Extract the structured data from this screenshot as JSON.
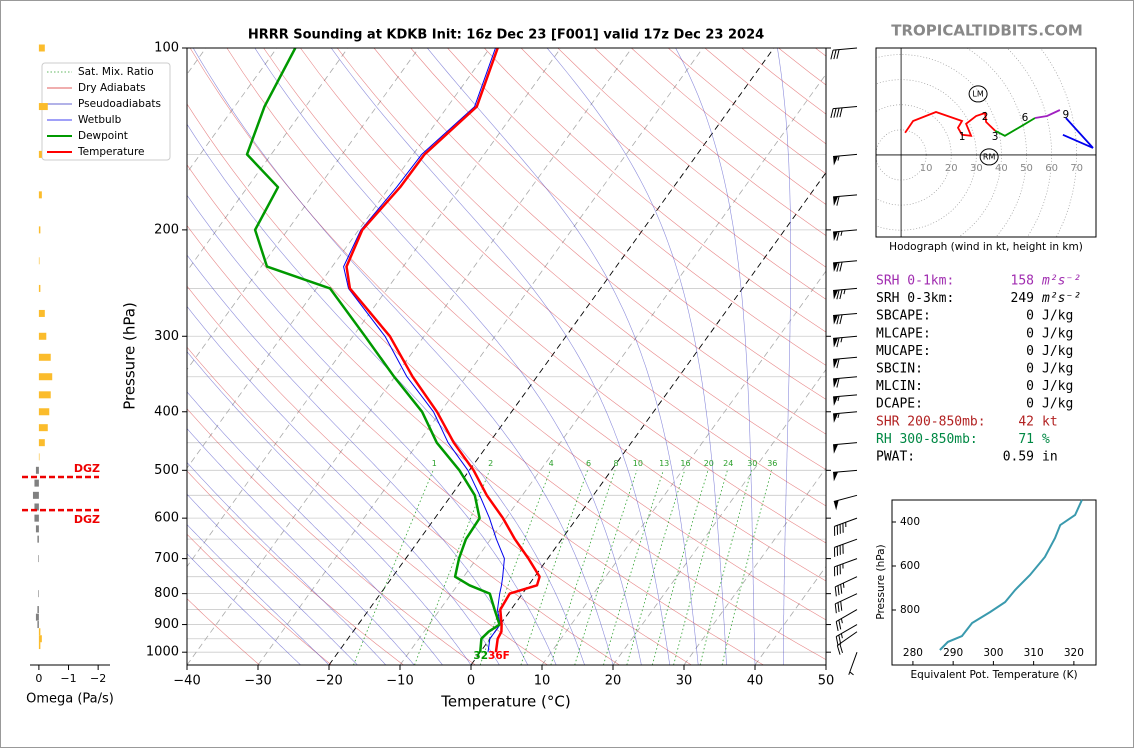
{
  "header": {
    "brand": "TROPICALTIDBITS.COM"
  },
  "parameters": {
    "rows": [
      {
        "label": "SRH 0-1km:",
        "value": 158,
        "unit": "m²s⁻²",
        "color": "#a02cb0"
      },
      {
        "label": "SRH 0-3km:",
        "value": 249,
        "unit": "m²s⁻²",
        "color": "#000000"
      },
      {
        "label": "SBCAPE:",
        "value": 0,
        "unit": "J/kg",
        "color": "#000000"
      },
      {
        "label": "MLCAPE:",
        "value": 0,
        "unit": "J/kg",
        "color": "#000000"
      },
      {
        "label": "MUCAPE:",
        "value": 0,
        "unit": "J/kg",
        "color": "#000000"
      },
      {
        "label": "SBCIN:",
        "value": 0,
        "unit": "J/kg",
        "color": "#000000"
      },
      {
        "label": "MLCIN:",
        "value": 0,
        "unit": "J/kg",
        "color": "#000000"
      },
      {
        "label": "DCAPE:",
        "value": 0,
        "unit": "J/kg",
        "color": "#000000"
      },
      {
        "label": "SHR 200-850mb:",
        "value": 42,
        "unit": "kt",
        "color": "#b22222"
      },
      {
        "label": "RH 300-850mb:",
        "value": 71,
        "unit": "%",
        "color": "#008844"
      },
      {
        "label": "PWAT:",
        "value": 0.59,
        "unit": "in",
        "color": "#000000"
      }
    ]
  },
  "chart_data": [
    {
      "type": "skewt",
      "title": "HRRR Sounding at KDKB Init: 16z Dec 23 [F001] valid 17z Dec 23 2024",
      "xlabel": "Temperature (°C)",
      "ylabel": "Pressure (hPa)",
      "xlim": [
        -40,
        50
      ],
      "ylim": [
        1050,
        100
      ],
      "log_scale": true,
      "xticks": [
        {
          "value": -40,
          "label": "−40"
        },
        {
          "value": -30,
          "label": "−30"
        },
        {
          "value": -20,
          "label": "−20"
        },
        {
          "value": -10,
          "label": "−10"
        },
        0,
        10,
        20,
        30,
        40,
        50
      ],
      "yticks": [
        100,
        200,
        300,
        400,
        500,
        600,
        700,
        800,
        900,
        1000
      ],
      "y": [
        1000,
        950,
        925,
        900,
        850,
        800,
        775,
        750,
        700,
        650,
        600,
        550,
        500,
        450,
        400,
        350,
        300,
        250,
        230,
        200,
        170,
        150,
        125,
        100
      ],
      "series": [
        {
          "name": "Wetbulb",
          "color": "#0000ee",
          "width": 1,
          "values": [
            1.1,
            0,
            0,
            0,
            -1.9,
            -3.2,
            -3.8,
            -4.5,
            -6.1,
            -9.2,
            -12.3,
            -16,
            -20.2,
            -25.8,
            -31,
            -38.3,
            -45.5,
            -55.5,
            -58.4,
            -59.7,
            -59,
            -58.8,
            -56.2,
            -59.2
          ]
        },
        {
          "name": "Dewpoint",
          "color": "#009900",
          "width": 2.5,
          "values": [
            0,
            -1.2,
            -0.9,
            -0.1,
            -2.3,
            -4.6,
            -8.3,
            -11.2,
            -12.5,
            -13.5,
            -13.7,
            -16.7,
            -21.4,
            -27.4,
            -32.6,
            -40.1,
            -48.3,
            -58.1,
            -69.2,
            -74.6,
            -75.7,
            -83.4,
            -85.8,
            -87.4
          ]
        },
        {
          "name": "Temperature",
          "color": "#ff0000",
          "width": 2.5,
          "values": [
            2.2,
            1.1,
            0.9,
            0.2,
            -1.5,
            -1.8,
            1.2,
            0.7,
            -2.7,
            -6.6,
            -10.4,
            -15,
            -19.4,
            -25,
            -30.5,
            -37.5,
            -44.8,
            -55.3,
            -58,
            -59.5,
            -58.5,
            -58.4,
            -55.9,
            -58.9
          ]
        }
      ],
      "background_lines": [
        {
          "name": "Sat. Mix. Ratio",
          "color": "#2ca02c"
        },
        {
          "name": "Dry Adiabats",
          "color": "#d62728"
        },
        {
          "name": "Pseudoadiabats",
          "color": "#3030c0"
        }
      ],
      "mixing_ratio_labels": [
        1,
        2,
        4,
        6,
        8,
        10,
        13,
        16,
        20,
        24,
        30,
        36
      ],
      "surface_labels": {
        "dewpoint": "32",
        "temperature": "36F"
      },
      "wind": {
        "pressure": [
          100,
          125,
          150,
          175,
          200,
          225,
          250,
          275,
          300,
          325,
          350,
          375,
          400,
          450,
          500,
          550,
          600,
          650,
          700,
          750,
          800,
          850,
          900,
          925,
          1000
        ],
        "direction": [
          265,
          265,
          265,
          265,
          265,
          265,
          265,
          265,
          265,
          265,
          265,
          265,
          265,
          265,
          265,
          255,
          250,
          250,
          250,
          245,
          245,
          240,
          240,
          235,
          200
        ],
        "speed": [
          30,
          40,
          55,
          60,
          65,
          70,
          75,
          70,
          65,
          60,
          60,
          55,
          55,
          50,
          50,
          50,
          45,
          40,
          35,
          35,
          30,
          25,
          25,
          20,
          5
        ]
      }
    },
    {
      "type": "hodograph",
      "xlabel": "Hodograph (wind in kt, height in km)",
      "xlim": [
        -10,
        77.7
      ],
      "ylim": [
        -32.7,
        42.6
      ],
      "xticks": [
        10,
        20,
        30,
        40,
        50,
        60,
        70
      ],
      "series": [
        {
          "color": "#ff0000",
          "x": [
            1.6,
            4.8,
            13.9,
            24.3,
            22.7,
            24.3,
            27.9,
            25.9,
            29.9,
            33.5,
            33.9,
            37.5
          ],
          "values": [
            8.8,
            13.5,
            17.1,
            13.5,
            10.8,
            8.0,
            7.6,
            12.4,
            15.5,
            16.7,
            13.1,
            9.6
          ]
        },
        {
          "color": "#009900",
          "x": [
            37.5,
            41.4,
            48.2,
            53.4
          ],
          "values": [
            9.6,
            7.6,
            11.6,
            14.7
          ]
        },
        {
          "color": "#a020c0",
          "x": [
            53.4,
            58.2,
            63.3
          ],
          "values": [
            14.7,
            15.5,
            17.9
          ]
        },
        {
          "color": "#0000ee",
          "x": [
            65.7,
            76.5,
            64.5
          ],
          "values": [
            14.7,
            2.8,
            8.0
          ]
        }
      ],
      "height_marks": [
        {
          "label": 1,
          "u": 24.3,
          "v": 7.2
        },
        {
          "label": 2,
          "u": 33.5,
          "v": 15.1
        },
        {
          "label": 3,
          "u": 37.5,
          "v": 7.2
        },
        {
          "label": 6,
          "u": 49.4,
          "v": 14.7
        },
        {
          "label": 9,
          "u": 65.7,
          "v": 15.9
        }
      ],
      "storm_motions": [
        {
          "label": "LM",
          "u": 30.7,
          "v": 24.3
        },
        {
          "label": "RM",
          "u": 35.1,
          "v": -0.8
        }
      ]
    },
    {
      "type": "line",
      "xlabel": "Equivalent Pot. Temperature (K)",
      "ylabel": "Pressure (hPa)",
      "xlim": [
        274.8,
        325.5
      ],
      "ylim": [
        1050,
        300
      ],
      "xticks": [
        280,
        290,
        300,
        310,
        320
      ],
      "yticks": [
        400,
        600,
        800
      ],
      "color": "#3a9aae",
      "y": [
        981.8,
        945,
        918,
        859,
        809,
        764,
        709,
        641,
        559,
        473,
        414,
        368,
        300
      ],
      "values": [
        286.7,
        288.7,
        292.2,
        294.7,
        299.2,
        302.9,
        305.4,
        309.1,
        312.8,
        315.3,
        316.6,
        320.3,
        322.0
      ]
    },
    {
      "type": "bar",
      "xlabel": "Omega (Pa/s)",
      "xlim": [
        0.3,
        -2.4
      ],
      "ylim": [
        1050,
        100
      ],
      "log_scale": true,
      "xticks": [
        0,
        {
          "value": -1,
          "label": "−1"
        },
        {
          "value": -2,
          "label": "−2"
        }
      ],
      "color_negative": "#fbbc2c",
      "color_positive": "#808080",
      "y": [
        100,
        125,
        150,
        175,
        200,
        225,
        250,
        275,
        300,
        325,
        350,
        375,
        400,
        425,
        450,
        475,
        500,
        525,
        550,
        575,
        600,
        625,
        650,
        700,
        800,
        850,
        875,
        900,
        925,
        950,
        975
      ],
      "values": [
        -0.2,
        -0.3,
        -0.1,
        -0.1,
        -0.05,
        -0.02,
        -0.05,
        -0.2,
        -0.25,
        -0.4,
        -0.45,
        -0.4,
        -0.35,
        -0.3,
        -0.2,
        -0.02,
        0.1,
        0.15,
        0.2,
        0.15,
        0.15,
        0.1,
        0.05,
        0.02,
        0.02,
        0.05,
        0.1,
        0.05,
        -0.05,
        -0.1,
        -0.05
      ],
      "dgz": [
        {
          "pressure": 513,
          "label": "DGZ"
        },
        {
          "pressure": 582,
          "label": "DGZ"
        }
      ]
    }
  ]
}
